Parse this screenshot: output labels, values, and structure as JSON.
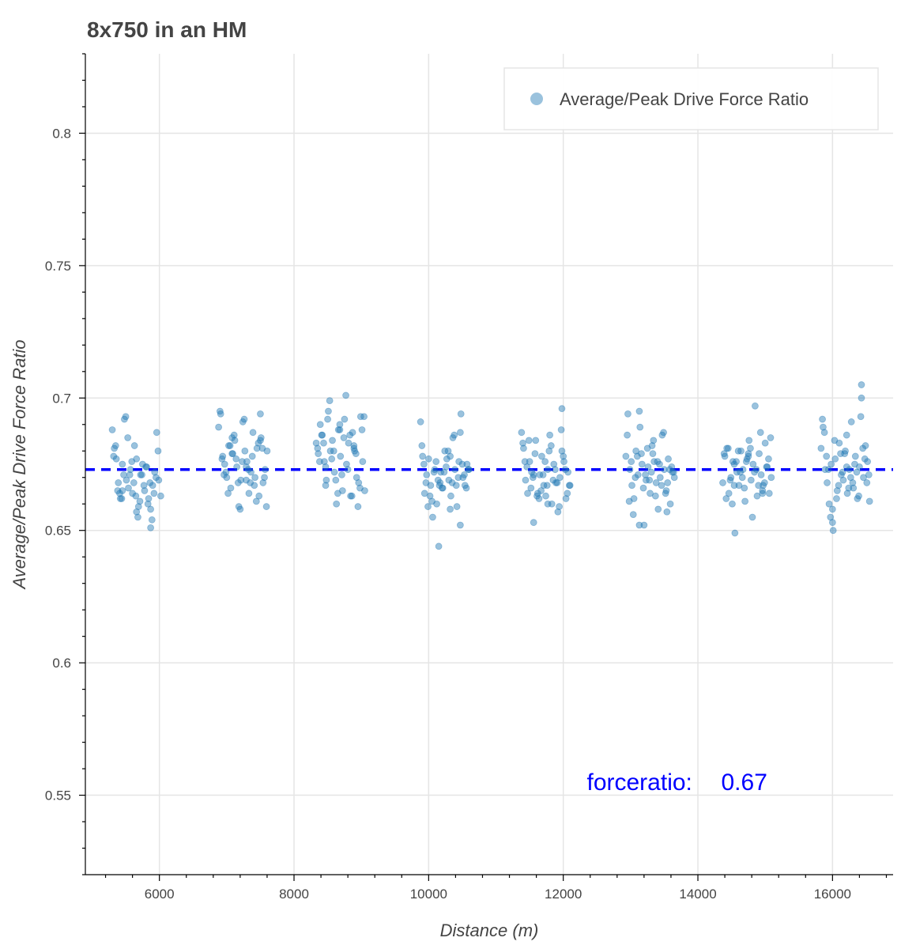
{
  "chart_data": {
    "type": "scatter",
    "title": "8x750 in an HM",
    "xlabel": "Distance (m)",
    "ylabel": "Average/Peak Drive Force Ratio",
    "xlim": [
      4900,
      16900
    ],
    "ylim": [
      0.52,
      0.83
    ],
    "x_ticks": [
      6000,
      8000,
      10000,
      12000,
      14000,
      16000
    ],
    "x_tick_labels": [
      "6000",
      "8000",
      "10000",
      "12000",
      "14000",
      "16000"
    ],
    "y_ticks": [
      0.55,
      0.6,
      0.65,
      0.7,
      0.75,
      0.8
    ],
    "y_tick_labels": [
      "0.55",
      "0.6",
      "0.65",
      "0.7",
      "0.75",
      "0.8"
    ],
    "grid": true,
    "legend": {
      "position": "top-right",
      "entries": [
        "Average/Peak Drive Force Ratio"
      ]
    },
    "reference_line": {
      "y": 0.673,
      "style": "dashed",
      "color": "#0000ff"
    },
    "annotation": {
      "label": "forceratio:",
      "value": "0.67",
      "x": 12350,
      "y": 0.555,
      "color": "#0000ff"
    },
    "colors": {
      "points": "#1f77b4",
      "point_opacity": 0.45
    },
    "series": [
      {
        "name": "Average/Peak Drive Force Ratio",
        "clusters": [
          {
            "x": [
              5300,
              5330,
              5360,
              5390,
              5420,
              5450,
              5480,
              5510,
              5540,
              5570,
              5600,
              5630,
              5660,
              5690,
              5720,
              5750,
              5780,
              5810,
              5840,
              5870,
              5900,
              5930,
              5960,
              5990,
              6020,
              5320,
              5380,
              5440,
              5500,
              5560,
              5620,
              5680,
              5740,
              5800,
              5860,
              5920,
              5980,
              5350,
              5470,
              5590,
              5710,
              5830,
              5950,
              5410,
              5530,
              5650,
              5770,
              5890,
              5450,
              5660,
              5870
            ],
            "y": [
              0.688,
              0.681,
              0.677,
              0.668,
              0.662,
              0.675,
              0.692,
              0.669,
              0.666,
              0.673,
              0.664,
              0.682,
              0.657,
              0.659,
              0.671,
              0.675,
              0.665,
              0.674,
              0.662,
              0.651,
              0.667,
              0.672,
              0.687,
              0.669,
              0.663,
              0.678,
              0.665,
              0.662,
              0.693,
              0.671,
              0.668,
              0.655,
              0.671,
              0.674,
              0.668,
              0.664,
              0.68,
              0.682,
              0.671,
              0.676,
              0.661,
              0.66,
              0.67,
              0.664,
              0.685,
              0.663,
              0.667,
              0.654,
              0.665,
              0.677,
              0.658
            ]
          },
          {
            "x": [
              6880,
              6910,
              6940,
              6970,
              7000,
              7030,
              7060,
              7090,
              7120,
              7150,
              7180,
              7210,
              7240,
              7270,
              7300,
              7330,
              7360,
              7390,
              7420,
              7450,
              7480,
              7510,
              7540,
              7570,
              7600,
              6900,
              6960,
              7020,
              7080,
              7140,
              7200,
              7260,
              7320,
              7380,
              7440,
              7500,
              7560,
              6930,
              7050,
              7170,
              7290,
              7410,
              7530,
              6990,
              7110,
              7230,
              7350,
              7470,
              7590,
              7080,
              7290,
              7500
            ],
            "y": [
              0.689,
              0.694,
              0.678,
              0.675,
              0.67,
              0.682,
              0.666,
              0.679,
              0.684,
              0.674,
              0.659,
              0.669,
              0.691,
              0.68,
              0.676,
              0.664,
              0.672,
              0.687,
              0.67,
              0.681,
              0.663,
              0.685,
              0.668,
              0.673,
              0.68,
              0.695,
              0.671,
              0.664,
              0.685,
              0.677,
              0.658,
              0.692,
              0.673,
              0.678,
              0.661,
              0.694,
              0.67,
              0.677,
              0.682,
              0.668,
              0.674,
              0.667,
              0.681,
              0.672,
              0.686,
              0.676,
              0.668,
              0.683,
              0.659,
              0.679,
              0.669,
              0.684
            ]
          },
          {
            "x": [
              8330,
              8360,
              8390,
              8420,
              8450,
              8480,
              8510,
              8540,
              8570,
              8600,
              8630,
              8660,
              8690,
              8720,
              8750,
              8780,
              8810,
              8840,
              8870,
              8900,
              8930,
              8960,
              8990,
              9020,
              9050,
              8350,
              8410,
              8470,
              8530,
              8590,
              8650,
              8710,
              8770,
              8830,
              8890,
              8950,
              9010,
              8380,
              8500,
              8620,
              8740,
              8860,
              8980,
              8440,
              8560,
              8680,
              8800,
              8920,
              9040,
              8470,
              8680,
              8890
            ],
            "y": [
              0.683,
              0.679,
              0.69,
              0.686,
              0.676,
              0.669,
              0.695,
              0.68,
              0.684,
              0.672,
              0.66,
              0.688,
              0.678,
              0.665,
              0.692,
              0.675,
              0.683,
              0.663,
              0.687,
              0.68,
              0.67,
              0.668,
              0.693,
              0.676,
              0.665,
              0.681,
              0.686,
              0.674,
              0.699,
              0.68,
              0.664,
              0.671,
              0.701,
              0.686,
              0.681,
              0.659,
              0.688,
              0.676,
              0.692,
              0.669,
              0.685,
              0.663,
              0.666,
              0.683,
              0.677,
              0.69,
              0.673,
              0.679,
              0.693,
              0.667,
              0.688,
              0.682
            ]
          },
          {
            "x": [
              9880,
              9910,
              9940,
              9970,
              10000,
              10030,
              10060,
              10090,
              10120,
              10150,
              10180,
              10210,
              10240,
              10270,
              10300,
              10330,
              10360,
              10390,
              10420,
              10450,
              10480,
              10510,
              10540,
              10570,
              10600,
              9900,
              9960,
              10020,
              10080,
              10140,
              10200,
              10260,
              10320,
              10380,
              10440,
              10500,
              10560,
              9930,
              10050,
              10170,
              10290,
              10410,
              10530,
              9990,
              10110,
              10230,
              10350,
              10470,
              10590,
              10160,
              10320,
              10470
            ],
            "y": [
              0.691,
              0.678,
              0.664,
              0.671,
              0.677,
              0.667,
              0.655,
              0.673,
              0.66,
              0.644,
              0.672,
              0.666,
              0.68,
              0.677,
              0.669,
              0.663,
              0.685,
              0.673,
              0.659,
              0.676,
              0.694,
              0.67,
              0.667,
              0.675,
              0.673,
              0.682,
              0.668,
              0.663,
              0.672,
              0.669,
              0.666,
              0.674,
              0.678,
              0.686,
              0.67,
              0.675,
              0.666,
              0.675,
              0.661,
              0.668,
              0.68,
              0.667,
              0.671,
              0.659,
              0.676,
              0.672,
              0.668,
              0.687,
              0.673,
              0.667,
              0.658,
              0.652
            ]
          },
          {
            "x": [
              11380,
              11410,
              11440,
              11470,
              11500,
              11530,
              11560,
              11590,
              11620,
              11650,
              11680,
              11710,
              11740,
              11770,
              11800,
              11830,
              11860,
              11890,
              11920,
              11950,
              11980,
              12010,
              12040,
              12070,
              12100,
              11400,
              11460,
              11520,
              11580,
              11640,
              11700,
              11760,
              11820,
              11880,
              11940,
              12000,
              12060,
              11430,
              11550,
              11670,
              11790,
              11910,
              12030,
              11490,
              11610,
              11730,
              11850,
              11970,
              12090,
              11560,
              11770,
              11980
            ],
            "y": [
              0.687,
              0.681,
              0.669,
              0.664,
              0.676,
              0.672,
              0.653,
              0.684,
              0.664,
              0.671,
              0.678,
              0.667,
              0.663,
              0.673,
              0.686,
              0.66,
              0.675,
              0.668,
              0.657,
              0.67,
              0.696,
              0.676,
              0.662,
              0.672,
              0.667,
              0.683,
              0.674,
              0.666,
              0.679,
              0.662,
              0.671,
              0.667,
              0.682,
              0.673,
              0.659,
              0.678,
              0.664,
              0.676,
              0.67,
              0.665,
              0.68,
              0.668,
              0.673,
              0.684,
              0.663,
              0.676,
              0.669,
              0.688,
              0.667,
              0.671,
              0.66,
              0.68
            ]
          },
          {
            "x": [
              12930,
              12960,
              12990,
              13020,
              13050,
              13080,
              13110,
              13140,
              13170,
              13200,
              13230,
              13260,
              13290,
              13320,
              13350,
              13380,
              13410,
              13440,
              13470,
              13500,
              13530,
              13560,
              13590,
              13620,
              13650,
              12950,
              13010,
              13070,
              13130,
              13190,
              13250,
              13310,
              13370,
              13430,
              13490,
              13550,
              13610,
              12980,
              13100,
              13220,
              13340,
              13460,
              13580,
              13040,
              13160,
              13280,
              13400,
              13520,
              13640,
              13130,
              13330,
              13540
            ],
            "y": [
              0.678,
              0.694,
              0.673,
              0.667,
              0.662,
              0.68,
              0.671,
              0.689,
              0.675,
              0.652,
              0.669,
              0.674,
              0.664,
              0.682,
              0.676,
              0.668,
              0.658,
              0.67,
              0.686,
              0.673,
              0.665,
              0.677,
              0.66,
              0.672,
              0.67,
              0.686,
              0.676,
              0.67,
              0.695,
              0.666,
              0.681,
              0.672,
              0.663,
              0.675,
              0.687,
              0.668,
              0.674,
              0.661,
              0.678,
              0.671,
              0.684,
              0.667,
              0.673,
              0.656,
              0.679,
              0.669,
              0.676,
              0.664,
              0.672,
              0.652,
              0.679,
              0.657
            ]
          },
          {
            "x": [
              14370,
              14400,
              14430,
              14460,
              14490,
              14520,
              14550,
              14580,
              14610,
              14640,
              14670,
              14700,
              14730,
              14760,
              14790,
              14820,
              14850,
              14880,
              14910,
              14940,
              14970,
              15000,
              15030,
              15060,
              15090,
              14390,
              14450,
              14510,
              14570,
              14630,
              14690,
              14750,
              14810,
              14870,
              14930,
              14990,
              15050,
              14420,
              14540,
              14660,
              14780,
              14900,
              15020,
              14480,
              14600,
              14720,
              14840,
              14960,
              15080,
              14540,
              14750,
              14960
            ],
            "y": [
              0.668,
              0.678,
              0.681,
              0.664,
              0.67,
              0.676,
              0.649,
              0.672,
              0.667,
              0.68,
              0.673,
              0.661,
              0.677,
              0.684,
              0.669,
              0.675,
              0.697,
              0.663,
              0.679,
              0.671,
              0.667,
              0.683,
              0.674,
              0.664,
              0.67,
              0.679,
              0.681,
              0.66,
              0.676,
              0.672,
              0.666,
              0.679,
              0.655,
              0.673,
              0.687,
              0.668,
              0.677,
              0.662,
              0.675,
              0.67,
              0.681,
              0.667,
              0.674,
              0.669,
              0.68,
              0.676,
              0.672,
              0.664,
              0.685,
              0.667,
              0.678,
              0.665
            ]
          },
          {
            "x": [
              15830,
              15860,
              15890,
              15920,
              15950,
              15980,
              16010,
              16040,
              16070,
              16100,
              16130,
              16160,
              16190,
              16220,
              16250,
              16280,
              16310,
              16340,
              16370,
              16400,
              16430,
              16460,
              16490,
              16520,
              16550,
              15850,
              15910,
              15970,
              16030,
              16090,
              16150,
              16210,
              16270,
              16330,
              16390,
              16450,
              16510,
              15880,
              16000,
              16120,
              16240,
              16360,
              16480,
              15940,
              16060,
              16180,
              16300,
              16420,
              16540,
              16000,
              16210,
              16430
            ],
            "y": [
              0.681,
              0.689,
              0.673,
              0.668,
              0.66,
              0.675,
              0.65,
              0.677,
              0.665,
              0.683,
              0.671,
              0.669,
              0.68,
              0.664,
              0.673,
              0.691,
              0.666,
              0.678,
              0.662,
              0.674,
              0.705,
              0.67,
              0.682,
              0.676,
              0.661,
              0.692,
              0.678,
              0.655,
              0.684,
              0.667,
              0.672,
              0.686,
              0.67,
              0.675,
              0.663,
              0.681,
              0.668,
              0.687,
              0.658,
              0.679,
              0.666,
              0.672,
              0.677,
              0.673,
              0.662,
              0.679,
              0.668,
              0.693,
              0.671,
              0.653,
              0.674,
              0.7
            ]
          }
        ]
      }
    ]
  }
}
